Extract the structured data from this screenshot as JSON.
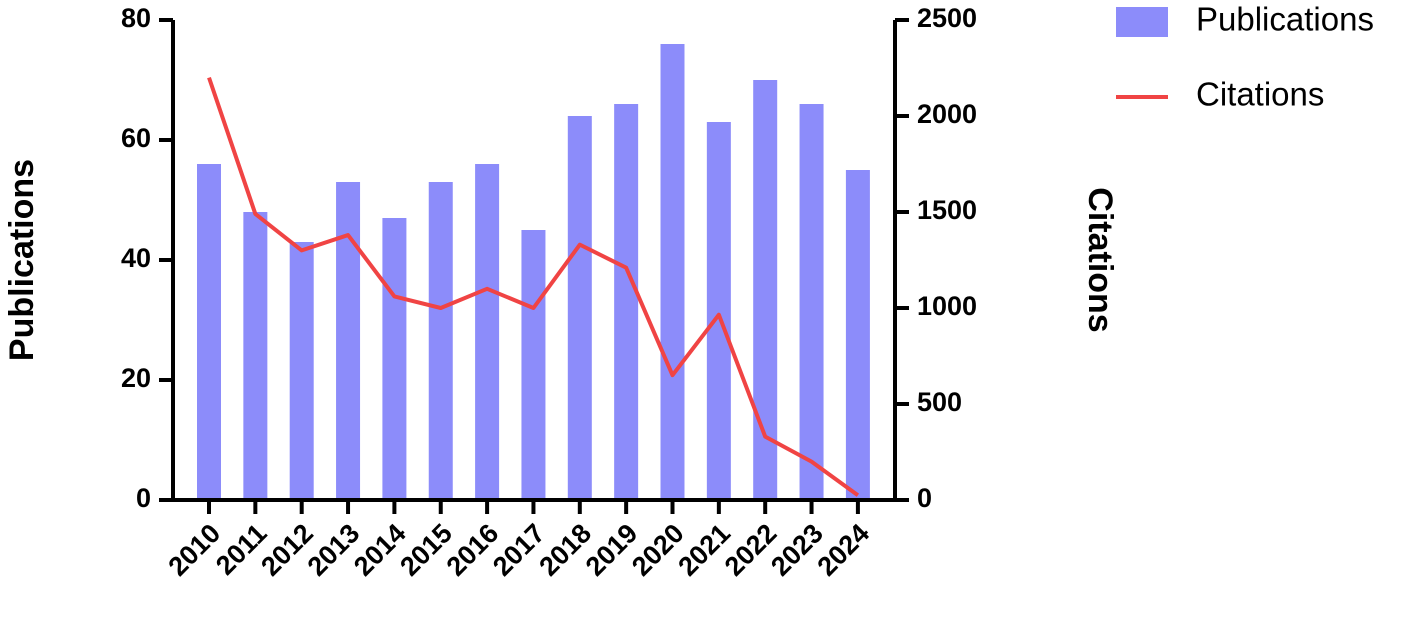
{
  "chart_data": {
    "type": "bar-line",
    "categories": [
      "2010",
      "2011",
      "2012",
      "2013",
      "2014",
      "2015",
      "2016",
      "2017",
      "2018",
      "2019",
      "2020",
      "2021",
      "2022",
      "2023",
      "2024"
    ],
    "y_label": "Publications",
    "y2_label": "Citations",
    "series": [
      {
        "name": "Publications",
        "color": "#8c8cfa",
        "type": "bar",
        "values": [
          56,
          48,
          43,
          53,
          47,
          53,
          56,
          45,
          64,
          66,
          76,
          63,
          70,
          66,
          55
        ]
      },
      {
        "name": "Citations",
        "color": "#f04444",
        "type": "line",
        "axis": "y2",
        "values": [
          2200,
          1490,
          1300,
          1380,
          1060,
          1000,
          1100,
          1000,
          1330,
          1210,
          650,
          965,
          330,
          200,
          25
        ]
      }
    ],
    "ylim": [
      0,
      80
    ],
    "yticks": [
      0,
      20,
      40,
      60,
      80
    ],
    "y2lim": [
      0,
      2500
    ],
    "y2ticks": [
      0,
      500,
      1000,
      1500,
      2000,
      2500
    ],
    "legend": "top-right"
  }
}
